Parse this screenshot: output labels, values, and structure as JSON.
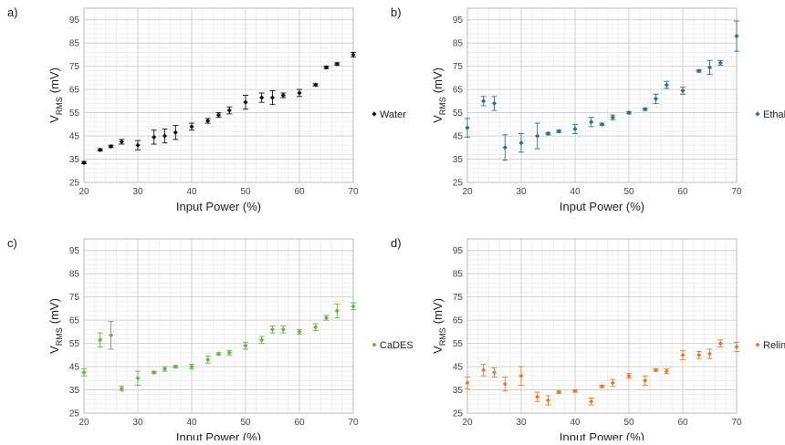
{
  "chart_data": [
    {
      "type": "scatter",
      "panel": "a)",
      "x_label": "Input Power (%)",
      "y_label": [
        "V",
        "RMS",
        "(mV)"
      ],
      "x": [
        20,
        23,
        25,
        27,
        30,
        33,
        35,
        37,
        40,
        43,
        45,
        47,
        50,
        53,
        55,
        57,
        60,
        63,
        65,
        67,
        70
      ],
      "series": [
        {
          "name": "Water",
          "color": "#111111",
          "values": [
            33.5,
            39,
            40.5,
            42.5,
            41,
            44.5,
            45,
            46.5,
            49,
            51.5,
            54,
            56,
            59.5,
            61.5,
            61.5,
            62.5,
            63.5,
            67,
            74.5,
            76,
            80
          ],
          "errors": [
            0.5,
            0.5,
            0.5,
            1,
            2,
            3,
            3,
            3,
            1.5,
            1,
            1,
            1.5,
            3,
            2,
            3,
            1,
            1.5,
            0.5,
            0.5,
            0.5,
            1
          ]
        }
      ],
      "xlim": [
        20,
        70
      ],
      "xticks": [
        20,
        30,
        40,
        50,
        60,
        70
      ],
      "ylim": [
        25,
        100
      ],
      "yticks": [
        25,
        35,
        45,
        55,
        65,
        75,
        85,
        95
      ],
      "grid": true
    },
    {
      "type": "scatter",
      "panel": "b)",
      "x_label": "Input Power (%)",
      "y_label": [
        "V",
        "RMS",
        "(mV)"
      ],
      "x": [
        20,
        23,
        25,
        27,
        30,
        33,
        35,
        37,
        40,
        43,
        45,
        47,
        50,
        53,
        55,
        57,
        60,
        63,
        65,
        67,
        70
      ],
      "series": [
        {
          "name": "Ethaline",
          "color": "#2e6f8e",
          "values": [
            48.5,
            60,
            59,
            40,
            42,
            45,
            46,
            47,
            48,
            51,
            50,
            53,
            55,
            56.5,
            61,
            67,
            64.5,
            73,
            74.5,
            76.5,
            88
          ],
          "errors": [
            4,
            2,
            3,
            5.5,
            4,
            5.5,
            0.5,
            0.5,
            2,
            2,
            0.5,
            1,
            0.5,
            0.5,
            2,
            1.5,
            1.5,
            0.5,
            3,
            1,
            6.5
          ]
        }
      ],
      "xlim": [
        20,
        70
      ],
      "xticks": [
        20,
        30,
        40,
        50,
        60,
        70
      ],
      "ylim": [
        25,
        100
      ],
      "yticks": [
        25,
        35,
        45,
        55,
        65,
        75,
        85,
        95
      ],
      "grid": true
    },
    {
      "type": "scatter",
      "panel": "c)",
      "x_label": "Input Power (%)",
      "y_label": [
        "V",
        "RMS",
        "(mV)"
      ],
      "x": [
        20,
        23,
        25,
        27,
        30,
        33,
        35,
        37,
        40,
        43,
        45,
        47,
        50,
        53,
        55,
        57,
        60,
        63,
        65,
        67,
        70
      ],
      "series": [
        {
          "name": "CaDES",
          "color": "#6ab04c",
          "values": [
            42.5,
            56.5,
            58.5,
            35.5,
            40,
            42.5,
            44,
            45,
            45,
            48,
            50.5,
            51,
            54,
            56.5,
            61,
            61,
            60,
            62,
            66,
            69,
            71
          ],
          "errors": [
            1.5,
            3,
            6,
            1,
            3,
            0.5,
            1,
            0.5,
            1,
            1.5,
            0.5,
            1,
            1.5,
            1.5,
            1.5,
            1.5,
            1,
            1.5,
            1,
            3,
            1.5
          ]
        }
      ],
      "xlim": [
        20,
        70
      ],
      "xticks": [
        20,
        30,
        40,
        50,
        60,
        70
      ],
      "ylim": [
        25,
        100
      ],
      "yticks": [
        25,
        35,
        45,
        55,
        65,
        75,
        85,
        95
      ],
      "grid": true
    },
    {
      "type": "scatter",
      "panel": "d)",
      "x_label": "Input Power (%)",
      "y_label": [
        "V",
        "RMS",
        "(mV)"
      ],
      "x": [
        20,
        23,
        25,
        27,
        30,
        33,
        35,
        37,
        40,
        43,
        45,
        47,
        50,
        53,
        55,
        57,
        60,
        63,
        65,
        67,
        70
      ],
      "series": [
        {
          "name": "Reline",
          "color": "#e07b39",
          "values": [
            38,
            43.5,
            42.5,
            37.5,
            41,
            32,
            30.5,
            34,
            34.5,
            30,
            36.5,
            38,
            41,
            39,
            43.5,
            43,
            50,
            50,
            50.5,
            55,
            53.5
          ],
          "errors": [
            2.5,
            2.5,
            2,
            3,
            4,
            2,
            2,
            0.5,
            0.5,
            1.5,
            0.5,
            1.5,
            1,
            2,
            0.5,
            1,
            2,
            1.5,
            2,
            1.5,
            2
          ]
        }
      ],
      "xlim": [
        20,
        70
      ],
      "xticks": [
        20,
        30,
        40,
        50,
        60,
        70
      ],
      "ylim": [
        25,
        100
      ],
      "yticks": [
        25,
        35,
        45,
        55,
        65,
        75,
        85,
        95
      ],
      "grid": true
    }
  ]
}
